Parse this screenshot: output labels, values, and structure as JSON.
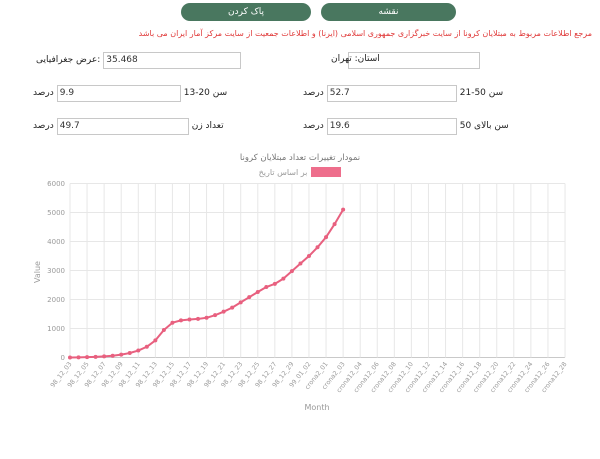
{
  "toolbar": {
    "clear_button": "پاک کردن",
    "map_button": "نقشه"
  },
  "notice": "مرجع اطلاعات مربوط به مبتلایان کرونا از سایت خبرگزاری جمهوری اسلامی (ایرنا) و اطلاعات جمعیت از سایت مرکز آمار ایران می باشد",
  "form": {
    "latitude": {
      "label": ":عرض جغرافیایی",
      "value": "35.468"
    },
    "province": {
      "combined": "استان: تهران",
      "label": "استان:",
      "value": "تهران"
    },
    "age_13_20": {
      "label": "سن 20-13",
      "value": "9.9",
      "suffix": "درصد"
    },
    "age_21_50": {
      "label": "سن 50-21",
      "value": "52.7",
      "suffix": "درصد"
    },
    "women": {
      "label": "تعداد زن",
      "value": "49.7",
      "suffix": "درصد"
    },
    "age_over_50": {
      "label": "سن بالای 50",
      "value": "19.6",
      "suffix": "درصد"
    }
  },
  "chart": {
    "title": "نمودار تغییرات تعداد مبتلایان کرونا",
    "legend_label": "بر اساس تاریخ"
  },
  "colors": {
    "line": "#e8607f",
    "swatch": "#ee6e8c",
    "button": "#49775f",
    "notice": "#e03a3a",
    "grid": "#e7e7e7",
    "axis_text": "#9a9a9a"
  },
  "chart_data": {
    "type": "line",
    "title": "نمودار تغییرات تعداد مبتلایان کرونا",
    "legend": [
      "بر اساس تاریخ"
    ],
    "xlabel": "Month",
    "ylabel": "Value",
    "ylim": [
      0,
      6000
    ],
    "y_ticks": [
      0,
      1000,
      2000,
      3000,
      4000,
      5000,
      6000
    ],
    "grid": true,
    "legend_position": "top",
    "x_tick_labels": [
      "98_12_03",
      "98_12_05",
      "98_12_07",
      "98_12_09",
      "98_12_11",
      "98_12_13",
      "98_12_15",
      "98_12_17",
      "98_12_19",
      "98_12_21",
      "98_12_23",
      "98_12_25",
      "98_12_27",
      "98_12_29",
      "99_01_02",
      "crona2_01",
      "crona2_03",
      "crona12_04",
      "crona12_06",
      "crona12_08",
      "crona12_10",
      "crona12_12",
      "crona12_14",
      "crona12_16",
      "crona12_18",
      "crona12_20",
      "crona12_22",
      "crona12_24",
      "crona12_26",
      "crona12_28"
    ],
    "points_per_tick": 2,
    "series": [
      {
        "name": "بر اساس تاریخ",
        "color": "#e8607f",
        "values": [
          0,
          5,
          12,
          22,
          38,
          62,
          100,
          155,
          240,
          370,
          590,
          950,
          1200,
          1280,
          1310,
          1330,
          1370,
          1460,
          1580,
          1720,
          1900,
          2080,
          2260,
          2430,
          2540,
          2720,
          2980,
          3240,
          3500,
          3800,
          4150,
          4600,
          5100
        ]
      }
    ]
  }
}
